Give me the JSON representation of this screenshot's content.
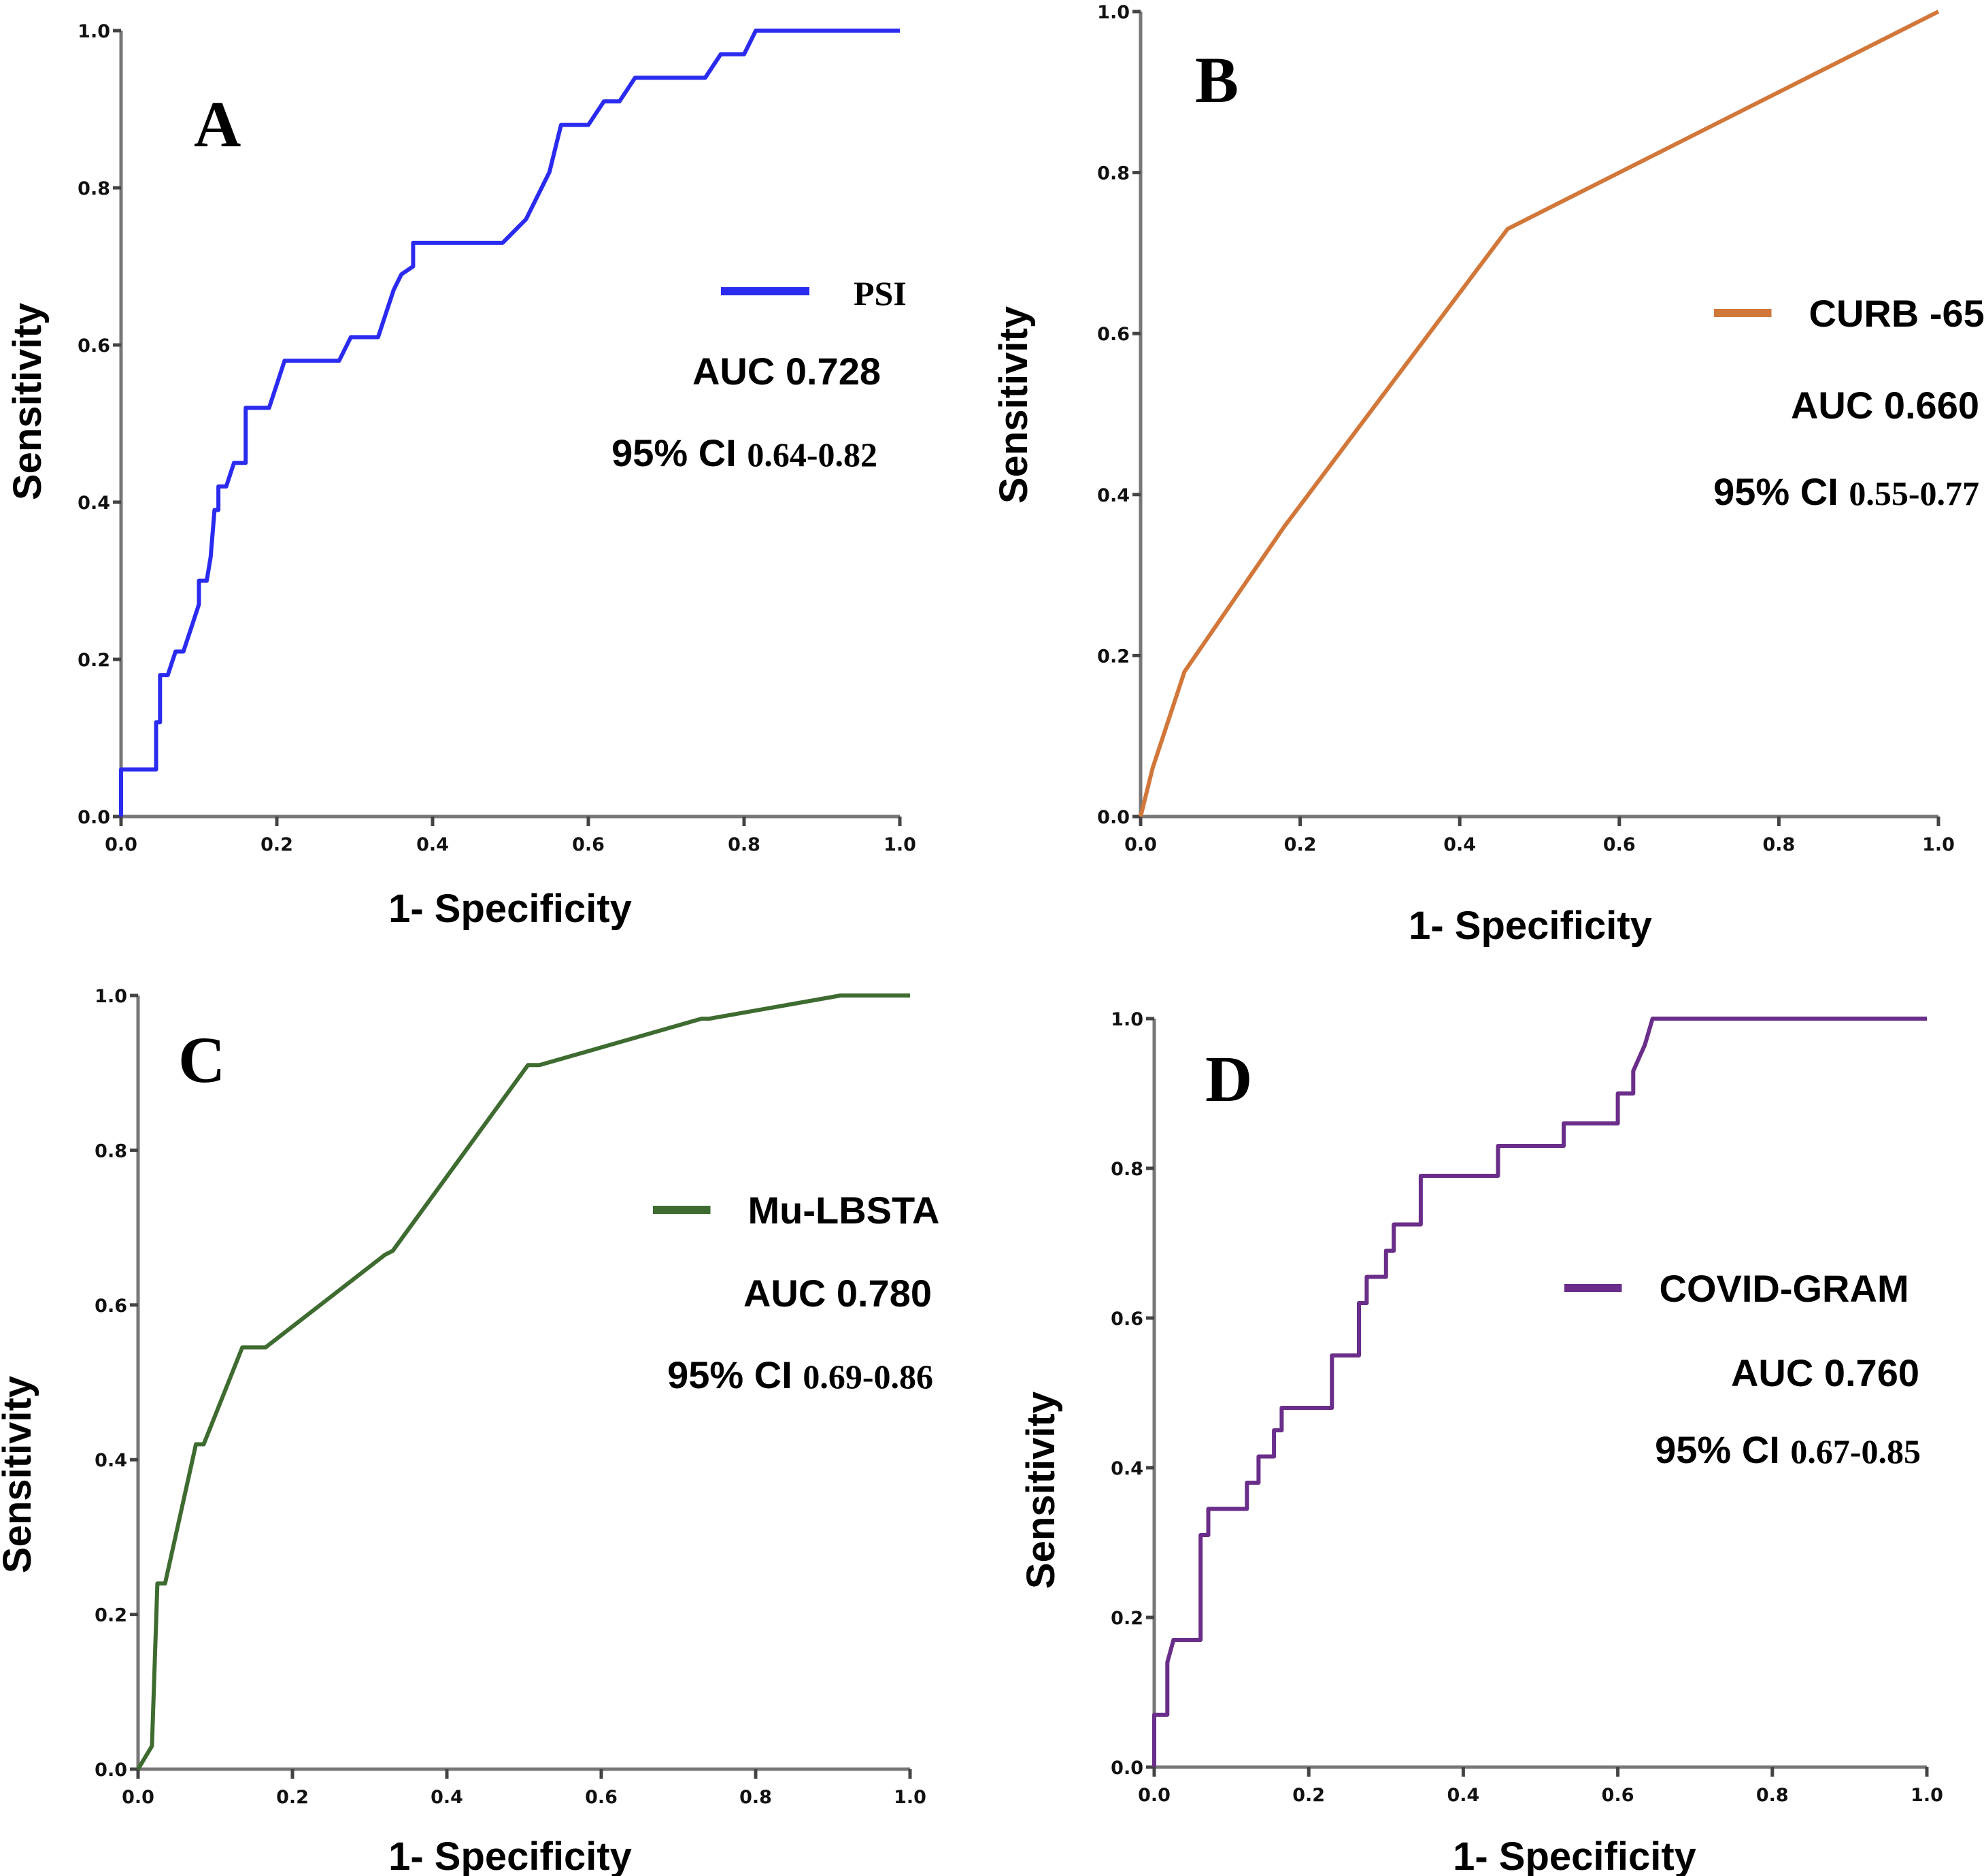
{
  "chart_data": [
    {
      "type": "line",
      "panel": "A",
      "title": "",
      "xlabel": "1- Specificity",
      "ylabel": "Sensitivity",
      "xlim": [
        0,
        1
      ],
      "ylim": [
        0,
        1
      ],
      "xticks": [
        "0.0",
        "0.2",
        "0.4",
        "0.6",
        "0.8",
        "1.0"
      ],
      "yticks": [
        "0.0",
        "0.2",
        "0.4",
        "0.6",
        "0.8",
        "1.0"
      ],
      "grid": false,
      "legend_position": "right",
      "series": [
        {
          "name": "PSI",
          "color": "#2b2bf0",
          "auc_label": "AUC 0.728",
          "ci_prefix": "95% CI ",
          "ci_value": "0.64-0.82",
          "x": [
            0,
            0,
            0.045,
            0.045,
            0.05,
            0.05,
            0.06,
            0.07,
            0.08,
            0.09,
            0.1,
            0.1,
            0.11,
            0.115,
            0.12,
            0.125,
            0.125,
            0.135,
            0.145,
            0.155,
            0.16,
            0.16,
            0.19,
            0.2,
            0.21,
            0.28,
            0.295,
            0.33,
            0.34,
            0.35,
            0.36,
            0.375,
            0.375,
            0.49,
            0.52,
            0.55,
            0.565,
            0.6,
            0.62,
            0.64,
            0.66,
            0.75,
            0.77,
            0.8,
            0.815,
            1.0
          ],
          "y": [
            0,
            0.06,
            0.06,
            0.12,
            0.12,
            0.18,
            0.18,
            0.21,
            0.21,
            0.24,
            0.27,
            0.3,
            0.3,
            0.33,
            0.39,
            0.39,
            0.42,
            0.42,
            0.45,
            0.45,
            0.45,
            0.52,
            0.52,
            0.55,
            0.58,
            0.58,
            0.61,
            0.61,
            0.64,
            0.67,
            0.69,
            0.7,
            0.73,
            0.73,
            0.76,
            0.82,
            0.88,
            0.88,
            0.91,
            0.91,
            0.94,
            0.94,
            0.97,
            0.97,
            1.0,
            1.0
          ]
        }
      ]
    },
    {
      "type": "line",
      "panel": "B",
      "title": "",
      "xlabel": "1- Specificity",
      "ylabel": "Sensitivity",
      "xlim": [
        0,
        1
      ],
      "ylim": [
        0,
        1
      ],
      "xticks": [
        "0.0",
        "0.2",
        "0.4",
        "0.6",
        "0.8",
        "1.0"
      ],
      "yticks": [
        "0.0",
        "0.2",
        "0.4",
        "0.6",
        "0.8",
        "1.0"
      ],
      "grid": false,
      "legend_position": "right",
      "series": [
        {
          "name": "CURB -65",
          "color": "#d2773a",
          "auc_label": "AUC 0.660",
          "ci_prefix": "95% CI ",
          "ci_value": "0.55-0.77",
          "x": [
            0,
            0.015,
            0.055,
            0.18,
            0.46,
            1.0
          ],
          "y": [
            0,
            0.06,
            0.18,
            0.36,
            0.73,
            1.0
          ]
        }
      ]
    },
    {
      "type": "line",
      "panel": "C",
      "title": "",
      "xlabel": "1- Specificity",
      "ylabel": "Sensitivity",
      "xlim": [
        0,
        1
      ],
      "ylim": [
        0,
        1
      ],
      "xticks": [
        "0.0",
        "0.2",
        "0.4",
        "0.6",
        "0.8",
        "1.0"
      ],
      "yticks": [
        "0.0",
        "0.2",
        "0.4",
        "0.6",
        "0.8",
        "1.0"
      ],
      "grid": false,
      "legend_position": "right",
      "series": [
        {
          "name": "Mu-LBSTA",
          "color": "#3e6b30",
          "auc_label": "AUC 0.780",
          "ci_prefix": "95% CI ",
          "ci_value": "0.69-0.86",
          "x": [
            0,
            0.018,
            0.025,
            0.035,
            0.075,
            0.085,
            0.135,
            0.165,
            0.32,
            0.33,
            0.505,
            0.52,
            0.73,
            0.74,
            0.91,
            1.0
          ],
          "y": [
            0,
            0.03,
            0.24,
            0.24,
            0.42,
            0.42,
            0.545,
            0.545,
            0.665,
            0.67,
            0.91,
            0.91,
            0.97,
            0.97,
            1.0,
            1.0
          ]
        }
      ]
    },
    {
      "type": "line",
      "panel": "D",
      "title": "",
      "xlabel": "1- Specificity",
      "ylabel": "Sensitivity",
      "xlim": [
        0,
        1
      ],
      "ylim": [
        0,
        1
      ],
      "xticks": [
        "0.0",
        "0.2",
        "0.4",
        "0.6",
        "0.8",
        "1.0"
      ],
      "yticks": [
        "0.0",
        "0.2",
        "0.4",
        "0.6",
        "0.8",
        "1.0"
      ],
      "grid": false,
      "legend_position": "right",
      "series": [
        {
          "name": "COVID-GRAM",
          "color": "#6a2e8a",
          "auc_label": "AUC 0.760",
          "ci_prefix": "95% CI ",
          "ci_value": "0.67-0.85",
          "x": [
            0,
            0,
            0.017,
            0.017,
            0.025,
            0.06,
            0.06,
            0.07,
            0.07,
            0.12,
            0.12,
            0.135,
            0.135,
            0.155,
            0.155,
            0.165,
            0.165,
            0.23,
            0.23,
            0.265,
            0.265,
            0.275,
            0.275,
            0.3,
            0.3,
            0.31,
            0.31,
            0.345,
            0.345,
            0.445,
            0.445,
            0.53,
            0.53,
            0.6,
            0.6,
            0.62,
            0.62,
            0.635,
            0.645,
            1.0
          ],
          "y": [
            0,
            0.07,
            0.07,
            0.14,
            0.17,
            0.17,
            0.31,
            0.31,
            0.345,
            0.345,
            0.38,
            0.38,
            0.415,
            0.415,
            0.45,
            0.45,
            0.48,
            0.48,
            0.55,
            0.55,
            0.62,
            0.62,
            0.655,
            0.655,
            0.69,
            0.69,
            0.725,
            0.725,
            0.79,
            0.79,
            0.83,
            0.83,
            0.86,
            0.86,
            0.9,
            0.9,
            0.93,
            0.965,
            1.0,
            1.0
          ]
        }
      ]
    }
  ]
}
